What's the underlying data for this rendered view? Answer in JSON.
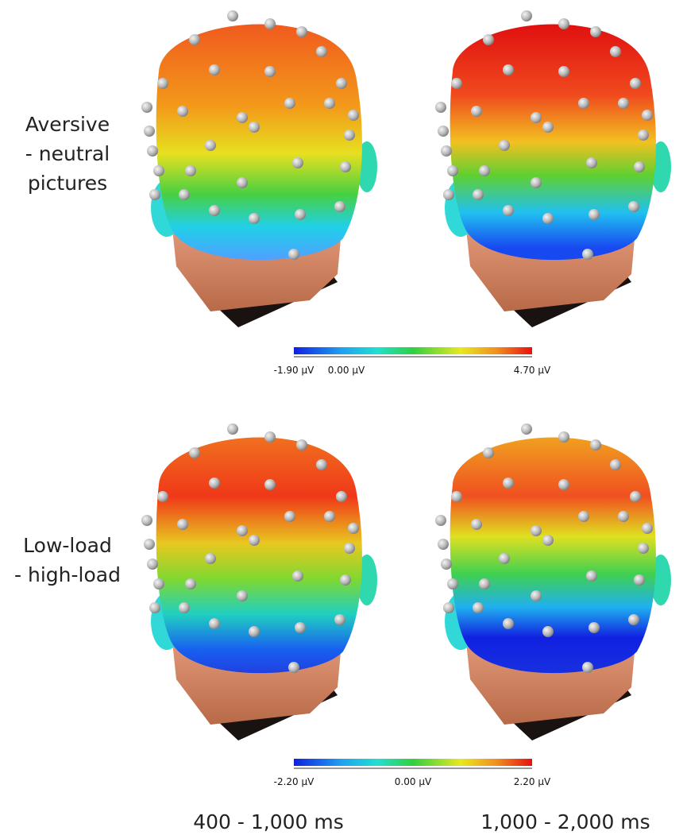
{
  "rows": [
    {
      "label_lines": [
        "Aversive",
        "- neutral",
        "pictures"
      ],
      "colorbar_labels": [
        "-1.90 µV",
        "0.00 µV",
        "4.70 µV"
      ]
    },
    {
      "label_lines": [
        "Low-load",
        "- high-load"
      ],
      "colorbar_labels": [
        "-2.20 µV",
        "0.00 µV",
        "2.20 µV"
      ]
    }
  ],
  "columns": [
    "400 - 1,000 ms",
    "1,000 - 2,000 ms"
  ]
}
